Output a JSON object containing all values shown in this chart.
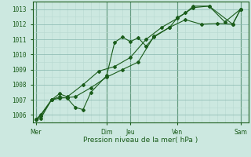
{
  "xlabel": "Pression niveau de la mer( hPa )",
  "background_color": "#cce8e0",
  "grid_minor_color": "#b8d8d0",
  "grid_major_color": "#88b8b0",
  "line_color": "#1a5c1a",
  "marker_color": "#1a5c1a",
  "ylim": [
    1005.5,
    1013.5
  ],
  "yticks": [
    1006,
    1007,
    1008,
    1009,
    1010,
    1011,
    1012,
    1013
  ],
  "x_day_labels": [
    "Mer",
    "Dim",
    "Jeu",
    "Ven",
    "Sam"
  ],
  "x_day_positions": [
    0,
    4.5,
    6.0,
    9.0,
    13.0
  ],
  "xlim": [
    -0.2,
    13.5
  ],
  "series1_x": [
    0,
    0.3,
    1.0,
    1.5,
    2.0,
    2.5,
    3.5,
    4.5,
    5.5,
    6.5,
    7.5,
    8.5,
    9.5,
    10.5,
    11.5,
    12.5,
    13.0
  ],
  "series1_y": [
    1005.7,
    1005.75,
    1007.0,
    1007.1,
    1007.15,
    1007.2,
    1007.8,
    1008.5,
    1009.0,
    1009.5,
    1011.2,
    1011.8,
    1012.3,
    1012.0,
    1012.05,
    1012.0,
    1013.0
  ],
  "series2_x": [
    0,
    0.3,
    1.0,
    1.5,
    2.0,
    2.5,
    3.0,
    3.5,
    4.5,
    5.0,
    5.5,
    6.0,
    6.5,
    7.0,
    7.5,
    8.5,
    9.0,
    9.5,
    10.0,
    11.0,
    12.5,
    13.0
  ],
  "series2_y": [
    1005.7,
    1006.0,
    1007.0,
    1007.2,
    1007.1,
    1006.5,
    1006.35,
    1007.5,
    1008.6,
    1010.8,
    1011.15,
    1010.85,
    1011.1,
    1010.55,
    1011.15,
    1011.8,
    1012.45,
    1012.75,
    1013.2,
    1013.2,
    1012.0,
    1013.0
  ],
  "series3_x": [
    0,
    0.3,
    1.0,
    1.5,
    2.0,
    3.0,
    4.0,
    5.0,
    6.0,
    7.0,
    8.0,
    9.0,
    10.0,
    11.0,
    12.0,
    13.0
  ],
  "series3_y": [
    1005.7,
    1005.9,
    1007.0,
    1007.4,
    1007.2,
    1008.0,
    1008.9,
    1009.2,
    1009.8,
    1011.0,
    1011.8,
    1012.4,
    1013.1,
    1013.2,
    1012.15,
    1013.0
  ]
}
